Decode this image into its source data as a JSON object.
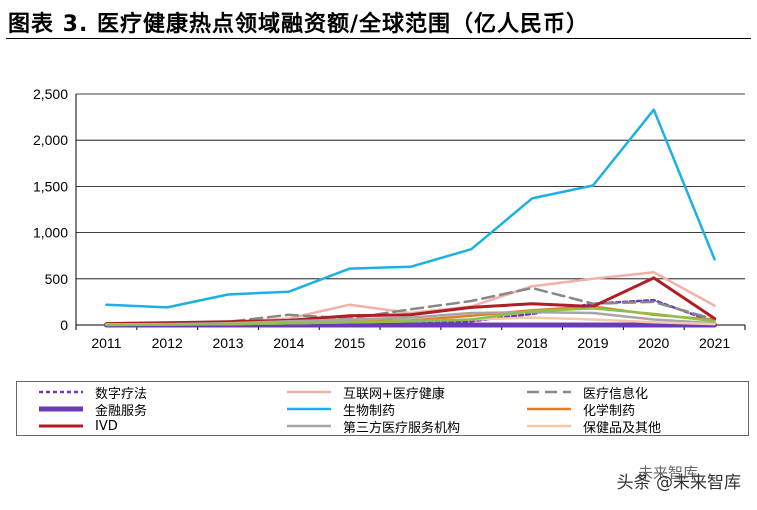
{
  "title": "图表 3. 医疗健康热点领域融资额/全球范围（亿人民币）",
  "chart_data": {
    "type": "line",
    "x": [
      "2011",
      "2012",
      "2013",
      "2014",
      "2015",
      "2016",
      "2017",
      "2018",
      "2019",
      "2020",
      "2021"
    ],
    "ylim": [
      0,
      2500
    ],
    "yticks": [
      "0",
      "500",
      "1,000",
      "1,500",
      "2,000",
      "2,500"
    ],
    "ytick_values": [
      0,
      500,
      1000,
      1500,
      2000,
      2500
    ],
    "grid": true,
    "legend_position": "bottom",
    "series": [
      {
        "name": "数字疗法",
        "color": "#6a3bb5",
        "dash": "short",
        "width": 2.5,
        "values": [
          0,
          0,
          0,
          2,
          5,
          15,
          40,
          120,
          230,
          270,
          30
        ]
      },
      {
        "name": "互联网+医疗健康",
        "color": "#f2b1a8",
        "dash": "solid",
        "width": 2.5,
        "values": [
          10,
          15,
          30,
          70,
          220,
          130,
          200,
          420,
          500,
          570,
          210
        ]
      },
      {
        "name": "医疗信息化",
        "color": "#888888",
        "dash": "long",
        "width": 2.5,
        "values": [
          10,
          15,
          35,
          110,
          70,
          170,
          260,
          400,
          230,
          250,
          60
        ]
      },
      {
        "name": "金融服务",
        "color": "#6a3bb5",
        "dash": "solid",
        "width": 5,
        "values": [
          0,
          0,
          0,
          0,
          0,
          0,
          0,
          0,
          0,
          0,
          0
        ]
      },
      {
        "name": "生物制药",
        "color": "#1cb0e5",
        "dash": "solid",
        "width": 2.5,
        "values": [
          220,
          190,
          330,
          360,
          610,
          630,
          820,
          1370,
          1510,
          2330,
          710
        ]
      },
      {
        "name": "化学制药",
        "color": "#e0802c",
        "dash": "solid",
        "width": 2.5,
        "values": [
          5,
          10,
          20,
          35,
          40,
          50,
          100,
          160,
          200,
          110,
          55
        ]
      },
      {
        "name": "IVD",
        "color": "#b01e24",
        "dash": "solid",
        "width": 3,
        "values": [
          15,
          25,
          35,
          50,
          100,
          110,
          190,
          230,
          200,
          510,
          70
        ]
      },
      {
        "name": "第三方医疗服务机构",
        "color": "#a6a6a6",
        "dash": "solid",
        "width": 2.5,
        "values": [
          5,
          10,
          20,
          40,
          60,
          80,
          130,
          140,
          130,
          60,
          20
        ]
      },
      {
        "name": "保健品及其他",
        "color": "#f5c9a8",
        "dash": "solid",
        "width": 2.5,
        "values": [
          5,
          5,
          10,
          20,
          30,
          40,
          60,
          80,
          60,
          30,
          10
        ]
      },
      {
        "name": "",
        "color": "#8cc04a",
        "dash": "solid",
        "width": 2.5,
        "values": [
          0,
          5,
          10,
          20,
          30,
          40,
          60,
          150,
          180,
          120,
          40
        ]
      }
    ]
  },
  "watermark": {
    "top": "未来智库",
    "main": "头条 @未来智库"
  }
}
